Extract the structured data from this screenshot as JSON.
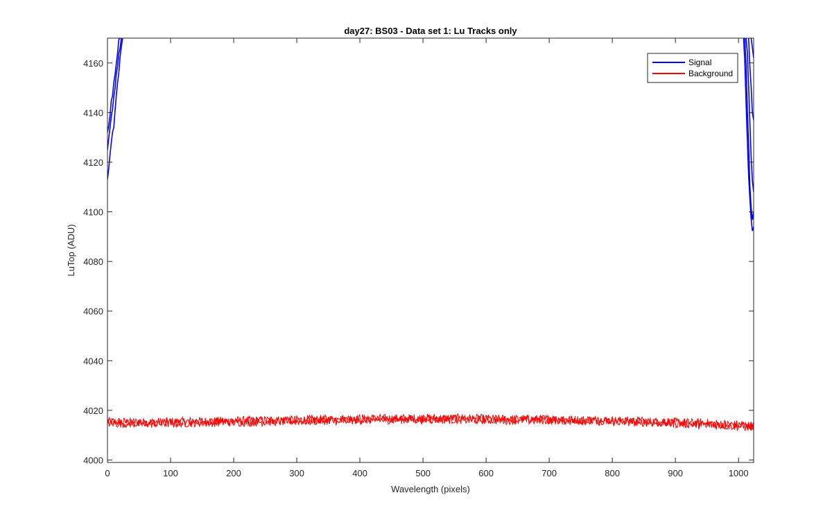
{
  "chart_data": {
    "type": "line",
    "title": "day27: BS03 - Data set 1: Lu Tracks only",
    "xlabel": "Wavelength (pixels)",
    "ylabel": "LuTop (ADU)",
    "xlim": [
      0,
      1024
    ],
    "ylim": [
      3999,
      4170
    ],
    "xticks": [
      0,
      100,
      200,
      300,
      400,
      500,
      600,
      700,
      800,
      900,
      1000
    ],
    "yticks": [
      4000,
      4020,
      4040,
      4060,
      4080,
      4100,
      4120,
      4140,
      4160
    ],
    "grid": false,
    "legend": {
      "position": "top-right",
      "entries": [
        "Signal",
        "Background"
      ]
    },
    "colors": {
      "Signal": "#0000ff",
      "Background": "#ff0000",
      "axis": "#262626"
    },
    "series": [
      {
        "name": "Signal",
        "segments": [
          {
            "x": [
              0,
              2,
              4,
              6,
              8,
              10,
              12,
              14,
              16,
              18,
              20,
              22,
              24
            ],
            "y": [
              4113,
              4116,
              4122,
              4127,
              4131,
              4135,
              4140,
              4146,
              4151,
              4156,
              4161,
              4166,
              4170
            ]
          },
          {
            "x": [
              0,
              2,
              4,
              6,
              8,
              10,
              12,
              14,
              16,
              18,
              20,
              22
            ],
            "y": [
              4125,
              4129,
              4134,
              4138,
              4142,
              4147,
              4151,
              4155,
              4159,
              4163,
              4167,
              4170
            ]
          },
          {
            "x": [
              0,
              2,
              4,
              6,
              8,
              10,
              12,
              14,
              16,
              18,
              20
            ],
            "y": [
              4132,
              4136,
              4139,
              4144,
              4148,
              4152,
              4156,
              4160,
              4164,
              4168,
              4170
            ]
          },
          {
            "x": [
              1008,
              1010,
              1012,
              1014,
              1016,
              1018,
              1020,
              1022,
              1024
            ],
            "y": [
              4170,
              4160,
              4145,
              4130,
              4115,
              4105,
              4098,
              4093,
              4094
            ]
          },
          {
            "x": [
              1010,
              1012,
              1014,
              1016,
              1018,
              1020,
              1022,
              1024
            ],
            "y": [
              4170,
              4158,
              4142,
              4127,
              4112,
              4102,
              4097,
              4100
            ]
          },
          {
            "x": [
              1012,
              1014,
              1016,
              1018,
              1020,
              1022,
              1024
            ],
            "y": [
              4170,
              4164,
              4150,
              4135,
              4122,
              4112,
              4108
            ]
          },
          {
            "x": [
              1016,
              1018,
              1020,
              1022,
              1024
            ],
            "y": [
              4170,
              4160,
              4150,
              4140,
              4137
            ]
          },
          {
            "x": [
              1020,
              1022,
              1024
            ],
            "y": [
              4170,
              4165,
              4162
            ]
          }
        ]
      },
      {
        "name": "Background",
        "traces": [
          {
            "x": [
              0,
              50,
              100,
              150,
              200,
              250,
              300,
              350,
              400,
              450,
              500,
              550,
              600,
              650,
              700,
              750,
              800,
              850,
              900,
              950,
              1000,
              1024
            ],
            "y": [
              4015.5,
              4015.2,
              4015.4,
              4015.6,
              4015.8,
              4016.0,
              4016.2,
              4016.4,
              4016.6,
              4016.7,
              4016.8,
              4016.8,
              4016.6,
              4016.4,
              4016.5,
              4016.2,
              4015.9,
              4015.6,
              4015.2,
              4014.8,
              4014.2,
              4013.8
            ],
            "noise": 1.8
          },
          {
            "x": [
              0,
              50,
              100,
              150,
              200,
              250,
              300,
              350,
              400,
              450,
              500,
              550,
              600,
              650,
              700,
              750,
              800,
              850,
              900,
              950,
              1000,
              1024
            ],
            "y": [
              4014.8,
              4014.6,
              4014.8,
              4015.0,
              4015.2,
              4015.4,
              4015.6,
              4015.9,
              4016.1,
              4016.2,
              4016.3,
              4016.3,
              4016.1,
              4016.0,
              4016.0,
              4015.8,
              4015.5,
              4015.2,
              4014.7,
              4014.2,
              4013.6,
              4013.2
            ],
            "noise": 1.8
          }
        ]
      }
    ]
  }
}
